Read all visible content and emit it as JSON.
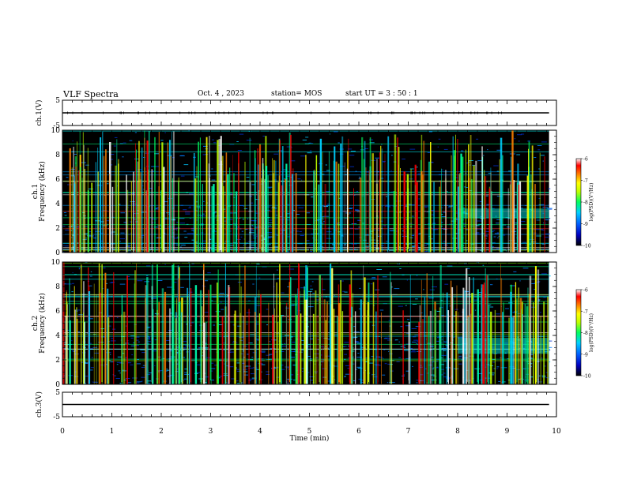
{
  "header": {
    "title": "VLF Spectra",
    "date": "Oct. 4 , 2023",
    "station": "station= MOS",
    "start_time": "start  UT =  3 : 50 : 1"
  },
  "chart_data": [
    {
      "type": "line",
      "title": "",
      "ylabel": "ch.1(V)",
      "ylim": [
        -5,
        5
      ],
      "yticks": [
        "5",
        "-5"
      ],
      "xlim": [
        0,
        10
      ],
      "series": [
        {
          "x": [
            0,
            9.85
          ],
          "y": [
            0,
            0
          ]
        }
      ]
    },
    {
      "type": "heatmap",
      "ylabel": "ch.1\nFrequency (kHz)",
      "ylim": [
        0,
        10
      ],
      "yticks": [
        "0",
        "2",
        "4",
        "6",
        "8",
        "10"
      ],
      "xlim": [
        0,
        10
      ],
      "data_extent_min": 9.85,
      "colorbar": {
        "label": "log(PSD)(V²/Hz)",
        "range": [
          -10,
          -6
        ],
        "ticks": [
          "-6",
          "-7",
          "-8",
          "-9",
          "-10"
        ]
      },
      "features": {
        "enhanced_band_after_min": 8.0,
        "enhanced_band_khz": [
          2.8,
          3.6
        ]
      }
    },
    {
      "type": "heatmap",
      "ylabel": "ch.2\nFrequency (kHz)",
      "ylim": [
        0,
        10
      ],
      "yticks": [
        "0",
        "2",
        "4",
        "6",
        "8",
        "10"
      ],
      "xlim": [
        0,
        10
      ],
      "data_extent_min": 9.85,
      "colorbar": {
        "label": "log(PSD)(V²/Hz)",
        "range": [
          -10,
          -6
        ],
        "ticks": [
          "-6",
          "-7",
          "-8",
          "-9",
          "-10"
        ]
      },
      "features": {
        "enhanced_band_after_min": 8.0,
        "enhanced_band_khz": [
          2.5,
          3.8
        ]
      }
    },
    {
      "type": "line",
      "ylabel": "ch.3(V)",
      "ylim": [
        -5,
        5
      ],
      "yticks": [
        "5",
        "-5"
      ],
      "xlim": [
        0,
        10
      ],
      "xlabel": "Time (min)",
      "xticks": [
        "0",
        "1",
        "2",
        "3",
        "4",
        "5",
        "6",
        "7",
        "8",
        "9",
        "10"
      ],
      "series": [
        {
          "x": [
            0,
            9.85
          ],
          "y": [
            0,
            0
          ]
        }
      ]
    }
  ],
  "colors": {
    "scale": [
      "#000000",
      "#0000c0",
      "#0060ff",
      "#00d0ff",
      "#00ff60",
      "#c0ff00",
      "#ffff00",
      "#ff8000",
      "#ff0000",
      "#ffffff"
    ]
  }
}
